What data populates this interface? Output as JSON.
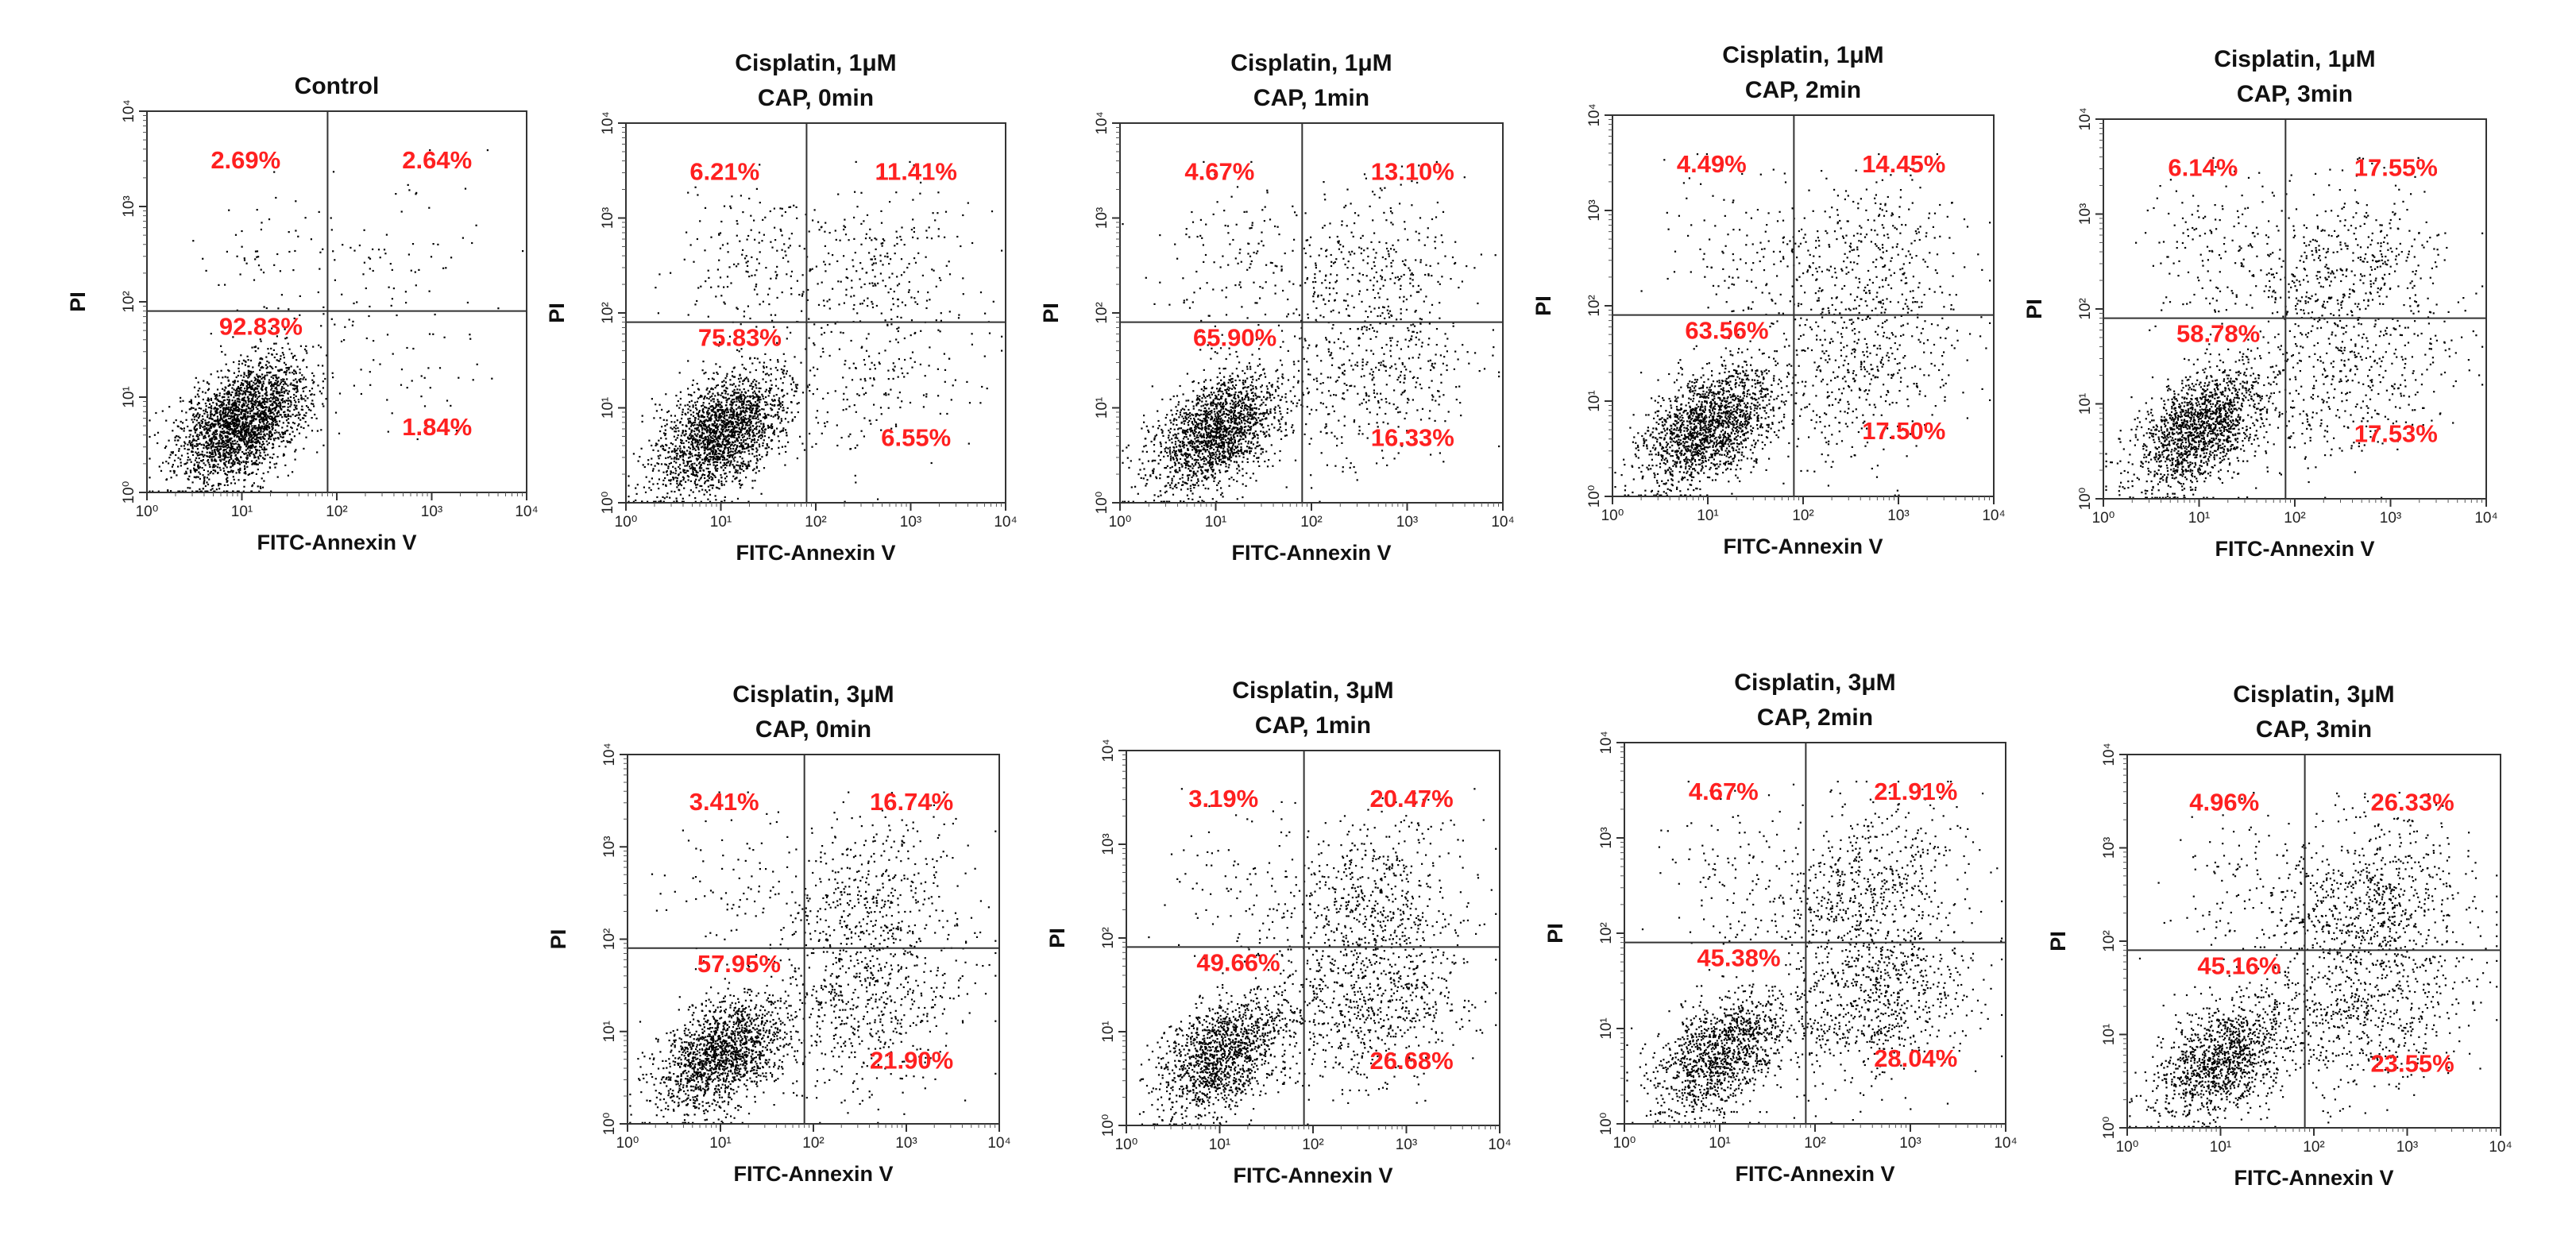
{
  "figure": {
    "background_color": "#ffffff",
    "point_color": "#000000",
    "label_color": "#ff2020"
  },
  "chart_data": [
    {
      "type": "scatter",
      "id": "control",
      "title_lines": [
        "Control"
      ],
      "xlabel": "FITC-Annexin V",
      "ylabel": "PI",
      "xscale": "log",
      "yscale": "log",
      "xlim": [
        1,
        10000
      ],
      "ylim": [
        1,
        10000
      ],
      "xticks": [
        1,
        10,
        100,
        1000,
        10000
      ],
      "yticks": [
        1,
        10,
        100,
        1000,
        10000
      ],
      "tick_labels": [
        "10⁰",
        "10¹",
        "10²",
        "10³",
        "10⁴"
      ],
      "gate": {
        "x": 80,
        "y": 80
      },
      "quadrants": {
        "upper_left": "2.69%",
        "upper_right": "2.64%",
        "lower_left": "92.83%",
        "lower_right": "1.84%"
      },
      "population_mix": {
        "live": 0.93,
        "early_apoptotic": 0.02,
        "late_apoptotic": 0.03,
        "necrotic": 0.02
      }
    },
    {
      "type": "scatter",
      "id": "cis1-cap0",
      "title_lines": [
        "Cisplatin, 1μM",
        "CAP,      0min"
      ],
      "xlabel": "FITC-Annexin V",
      "ylabel": "PI",
      "xscale": "log",
      "yscale": "log",
      "xlim": [
        1,
        10000
      ],
      "ylim": [
        1,
        10000
      ],
      "xticks": [
        1,
        10,
        100,
        1000,
        10000
      ],
      "yticks": [
        1,
        10,
        100,
        1000,
        10000
      ],
      "tick_labels": [
        "10⁰",
        "10¹",
        "10²",
        "10³",
        "10⁴"
      ],
      "gate": {
        "x": 80,
        "y": 80
      },
      "quadrants": {
        "upper_left": "6.21%",
        "upper_right": "11.41%",
        "lower_left": "75.83%",
        "lower_right": "6.55%"
      },
      "population_mix": {
        "live": 0.76,
        "early_apoptotic": 0.07,
        "late_apoptotic": 0.11,
        "necrotic": 0.06
      }
    },
    {
      "type": "scatter",
      "id": "cis1-cap1",
      "title_lines": [
        "Cisplatin, 1μM",
        "CAP,      1min"
      ],
      "xlabel": "FITC-Annexin V",
      "ylabel": "PI",
      "xscale": "log",
      "yscale": "log",
      "xlim": [
        1,
        10000
      ],
      "ylim": [
        1,
        10000
      ],
      "xticks": [
        1,
        10,
        100,
        1000,
        10000
      ],
      "yticks": [
        1,
        10,
        100,
        1000,
        10000
      ],
      "tick_labels": [
        "10⁰",
        "10¹",
        "10²",
        "10³",
        "10⁴"
      ],
      "gate": {
        "x": 80,
        "y": 80
      },
      "quadrants": {
        "upper_left": "4.67%",
        "upper_right": "13.10%",
        "lower_left": "65.90%",
        "lower_right": "16.33%"
      },
      "population_mix": {
        "live": 0.66,
        "early_apoptotic": 0.16,
        "late_apoptotic": 0.13,
        "necrotic": 0.05
      }
    },
    {
      "type": "scatter",
      "id": "cis1-cap2",
      "title_lines": [
        "Cisplatin, 1μM",
        "CAP,      2min"
      ],
      "xlabel": "FITC-Annexin V",
      "ylabel": "PI",
      "xscale": "log",
      "yscale": "log",
      "xlim": [
        1,
        10000
      ],
      "ylim": [
        1,
        10000
      ],
      "xticks": [
        1,
        10,
        100,
        1000,
        10000
      ],
      "yticks": [
        1,
        10,
        100,
        1000,
        10000
      ],
      "tick_labels": [
        "10⁰",
        "10¹",
        "10²",
        "10³",
        "10⁴"
      ],
      "gate": {
        "x": 80,
        "y": 80
      },
      "quadrants": {
        "upper_left": "4.49%",
        "upper_right": "14.45%",
        "lower_left": "63.56%",
        "lower_right": "17.50%"
      },
      "population_mix": {
        "live": 0.64,
        "early_apoptotic": 0.17,
        "late_apoptotic": 0.15,
        "necrotic": 0.04
      }
    },
    {
      "type": "scatter",
      "id": "cis1-cap3",
      "title_lines": [
        "Cisplatin, 1μM",
        "CAP,      3min"
      ],
      "xlabel": "FITC-Annexin V",
      "ylabel": "PI",
      "xscale": "log",
      "yscale": "log",
      "xlim": [
        1,
        10000
      ],
      "ylim": [
        1,
        10000
      ],
      "xticks": [
        1,
        10,
        100,
        1000,
        10000
      ],
      "yticks": [
        1,
        10,
        100,
        1000,
        10000
      ],
      "tick_labels": [
        "10⁰",
        "10¹",
        "10²",
        "10³",
        "10⁴"
      ],
      "gate": {
        "x": 80,
        "y": 80
      },
      "quadrants": {
        "upper_left": "6.14%",
        "upper_right": "17.55%",
        "lower_left": "58.78%",
        "lower_right": "17.53%"
      },
      "population_mix": {
        "live": 0.59,
        "early_apoptotic": 0.17,
        "late_apoptotic": 0.18,
        "necrotic": 0.06
      }
    },
    {
      "type": "scatter",
      "id": "cis3-cap0",
      "title_lines": [
        "Cisplatin, 3μM",
        "CAP,      0min"
      ],
      "xlabel": "FITC-Annexin V",
      "ylabel": "PI",
      "xscale": "log",
      "yscale": "log",
      "xlim": [
        1,
        10000
      ],
      "ylim": [
        1,
        10000
      ],
      "xticks": [
        1,
        10,
        100,
        1000,
        10000
      ],
      "yticks": [
        1,
        10,
        100,
        1000,
        10000
      ],
      "tick_labels": [
        "10⁰",
        "10¹",
        "10²",
        "10³",
        "10⁴"
      ],
      "gate": {
        "x": 80,
        "y": 80
      },
      "quadrants": {
        "upper_left": "3.41%",
        "upper_right": "16.74%",
        "lower_left": "57.95%",
        "lower_right": "21.90%"
      },
      "population_mix": {
        "live": 0.58,
        "early_apoptotic": 0.22,
        "late_apoptotic": 0.17,
        "necrotic": 0.03
      }
    },
    {
      "type": "scatter",
      "id": "cis3-cap1",
      "title_lines": [
        "Cisplatin, 3μM",
        "CAP,      1min"
      ],
      "xlabel": "FITC-Annexin V",
      "ylabel": "PI",
      "xscale": "log",
      "yscale": "log",
      "xlim": [
        1,
        10000
      ],
      "ylim": [
        1,
        10000
      ],
      "xticks": [
        1,
        10,
        100,
        1000,
        10000
      ],
      "yticks": [
        1,
        10,
        100,
        1000,
        10000
      ],
      "tick_labels": [
        "10⁰",
        "10¹",
        "10²",
        "10³",
        "10⁴"
      ],
      "gate": {
        "x": 80,
        "y": 80
      },
      "quadrants": {
        "upper_left": "3.19%",
        "upper_right": "20.47%",
        "lower_left": "49.66%",
        "lower_right": "26.68%"
      },
      "population_mix": {
        "live": 0.5,
        "early_apoptotic": 0.27,
        "late_apoptotic": 0.2,
        "necrotic": 0.03
      }
    },
    {
      "type": "scatter",
      "id": "cis3-cap2",
      "title_lines": [
        "Cisplatin, 3μM",
        "CAP,      2min"
      ],
      "xlabel": "FITC-Annexin V",
      "ylabel": "PI",
      "xscale": "log",
      "yscale": "log",
      "xlim": [
        1,
        10000
      ],
      "ylim": [
        1,
        10000
      ],
      "xticks": [
        1,
        10,
        100,
        1000,
        10000
      ],
      "yticks": [
        1,
        10,
        100,
        1000,
        10000
      ],
      "tick_labels": [
        "10⁰",
        "10¹",
        "10²",
        "10³",
        "10⁴"
      ],
      "gate": {
        "x": 80,
        "y": 80
      },
      "quadrants": {
        "upper_left": "4.67%",
        "upper_right": "21.91%",
        "lower_left": "45.38%",
        "lower_right": "28.04%"
      },
      "population_mix": {
        "live": 0.45,
        "early_apoptotic": 0.28,
        "late_apoptotic": 0.22,
        "necrotic": 0.05
      }
    },
    {
      "type": "scatter",
      "id": "cis3-cap3",
      "title_lines": [
        "Cisplatin, 3μM",
        "CAP,      3min"
      ],
      "xlabel": "FITC-Annexin V",
      "ylabel": "PI",
      "xscale": "log",
      "yscale": "log",
      "xlim": [
        1,
        10000
      ],
      "ylim": [
        1,
        10000
      ],
      "xticks": [
        1,
        10,
        100,
        1000,
        10000
      ],
      "yticks": [
        1,
        10,
        100,
        1000,
        10000
      ],
      "tick_labels": [
        "10⁰",
        "10¹",
        "10²",
        "10³",
        "10⁴"
      ],
      "gate": {
        "x": 80,
        "y": 80
      },
      "quadrants": {
        "upper_left": "4.96%",
        "upper_right": "26.33%",
        "lower_left": "45.16%",
        "lower_right": "23.55%"
      },
      "population_mix": {
        "live": 0.45,
        "early_apoptotic": 0.24,
        "late_apoptotic": 0.26,
        "necrotic": 0.05
      }
    }
  ]
}
